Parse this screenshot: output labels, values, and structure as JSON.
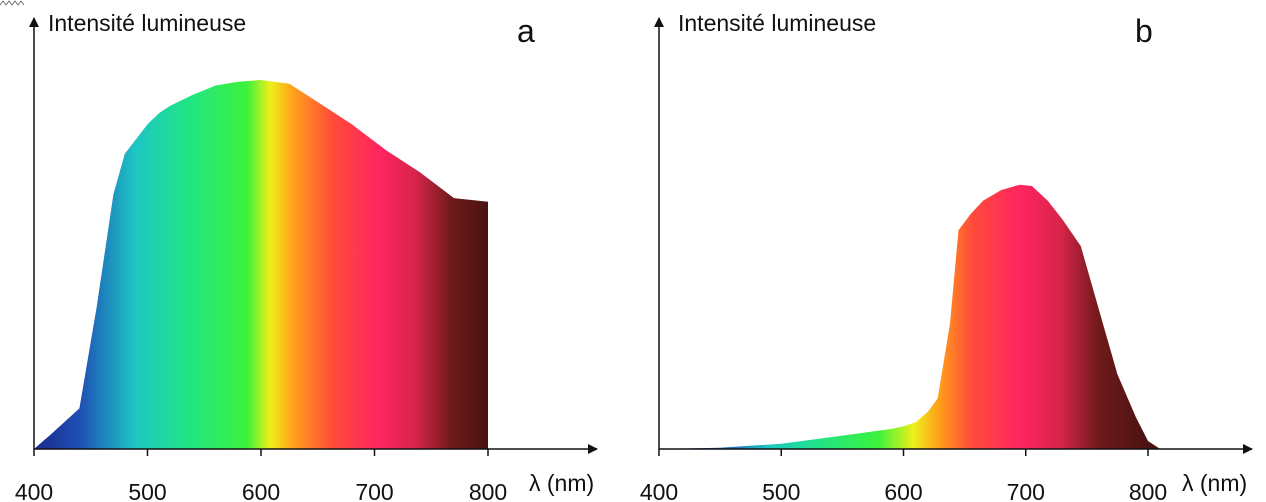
{
  "chart_data": [
    {
      "type": "area",
      "title": "a",
      "ylabel": "Intensité lumineuse",
      "xlabel": "λ (nm)",
      "xlim": [
        400,
        800
      ],
      "x_ticks": [
        "400",
        "500",
        "600",
        "700",
        "800"
      ],
      "ylim": [
        0,
        1
      ],
      "grid": false,
      "fill": "visible spectrum gradient",
      "series": [
        {
          "x": [
            400,
            415,
            440,
            455,
            470,
            480,
            485,
            500,
            510,
            520,
            540,
            560,
            580,
            600,
            625,
            650,
            680,
            710,
            740,
            770,
            800
          ],
          "values": [
            0.0,
            0.04,
            0.11,
            0.38,
            0.69,
            0.8,
            0.82,
            0.88,
            0.91,
            0.93,
            0.96,
            0.985,
            0.995,
            1.0,
            0.99,
            0.94,
            0.88,
            0.81,
            0.75,
            0.68,
            0.67
          ]
        }
      ]
    },
    {
      "type": "area",
      "title": "b",
      "ylabel": "Intensité lumineuse",
      "xlabel": "λ (nm)",
      "xlim": [
        400,
        800
      ],
      "x_ticks": [
        "400",
        "500",
        "600",
        "700",
        "800"
      ],
      "ylim": [
        0,
        1
      ],
      "grid": false,
      "fill": "visible spectrum gradient",
      "series": [
        {
          "x": [
            400,
            450,
            500,
            550,
            590,
            600,
            610,
            620,
            628,
            638,
            645,
            655,
            665,
            680,
            695,
            705,
            718,
            730,
            745,
            760,
            775,
            790,
            800,
            810
          ],
          "values": [
            0.0,
            0.005,
            0.02,
            0.05,
            0.075,
            0.085,
            0.1,
            0.14,
            0.19,
            0.47,
            0.82,
            0.88,
            0.93,
            0.97,
            0.99,
            0.985,
            0.93,
            0.86,
            0.76,
            0.52,
            0.28,
            0.12,
            0.03,
            0.0
          ]
        }
      ]
    }
  ]
}
